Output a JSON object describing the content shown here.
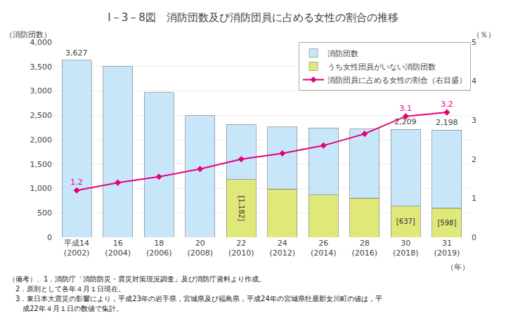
{
  "chart_data": {
    "type": "bar",
    "title": "I－3－8図　消防団数及び消防団員に占める女性の割合の推移",
    "categories": [
      "平成14\n(2002)",
      "16\n(2004)",
      "18\n(2006)",
      "20\n(2008)",
      "22\n(2010)",
      "24\n(2012)",
      "26\n(2014)",
      "28\n(2016)",
      "30\n(2018)",
      "31\n(2019)"
    ],
    "xlabel": "（年）",
    "ylabel": "（消防団数）",
    "y2label": "（％）",
    "stacked": true,
    "grid": true,
    "legend": "upper right",
    "ylim": [
      0,
      4000
    ],
    "yticks": [
      0,
      500,
      {
        "value": 1000,
        "label": "1,000"
      },
      {
        "value": 1500,
        "label": "1,500"
      },
      {
        "value": 2000,
        "label": "2,000"
      },
      {
        "value": 2500,
        "label": "2,500"
      },
      {
        "value": 3000,
        "label": "3,000"
      },
      {
        "value": 3500,
        "label": "3,500"
      },
      {
        "value": 4000,
        "label": "4,000"
      }
    ],
    "y2lim": [
      0,
      5
    ],
    "y2ticks": [
      0,
      1,
      2,
      3,
      4,
      5
    ],
    "series": [
      {
        "name": "消防団数",
        "type": "bar",
        "color": "#C8E6FA",
        "values": [
          3627,
          3510,
          2970,
          2490,
          1128,
          1270,
          1370,
          1420,
          1572,
          1600
        ]
      },
      {
        "name": "うち女性団員がいない消防団数",
        "type": "bar",
        "color": "#E0E87A",
        "values": [
          0,
          0,
          0,
          0,
          1182,
          990,
          870,
          800,
          637,
          598
        ],
        "value_labels": [
          null,
          null,
          null,
          null,
          "[1,182]",
          null,
          null,
          null,
          "[637]",
          "[598]"
        ]
      },
      {
        "name": "消防団員に占める女性の割合（右目盛）",
        "type": "line",
        "axis": "y2",
        "color": "#E5007F",
        "marker": "diamond",
        "values": [
          1.2,
          1.4,
          1.55,
          1.75,
          2.0,
          2.15,
          2.35,
          2.65,
          3.1,
          3.2
        ],
        "value_labels": [
          "1.2",
          null,
          null,
          null,
          null,
          null,
          null,
          null,
          "3.1",
          "3.2"
        ]
      }
    ],
    "annotations": [
      {
        "text": "3,627",
        "category": "平成14\n(2002)",
        "value": 3627
      },
      {
        "text": "2,209",
        "category": "30\n(2018)",
        "value": 2209
      },
      {
        "text": "2,198",
        "category": "31\n(2019)",
        "value": 2198
      }
    ],
    "notes": [
      "（備考）、1．消防庁「消防防災・震災対策現況調査」及び消防庁資料より作成。",
      "　2．原則として各年４月１日現在。",
      "　3．東日本大震災の影響により，平成23年の岩手県，宮城県及び福島県，平成24年の宮城県牡鹿郡女川町の値は，平",
      "成22年４月１日の数値で集計。"
    ]
  }
}
